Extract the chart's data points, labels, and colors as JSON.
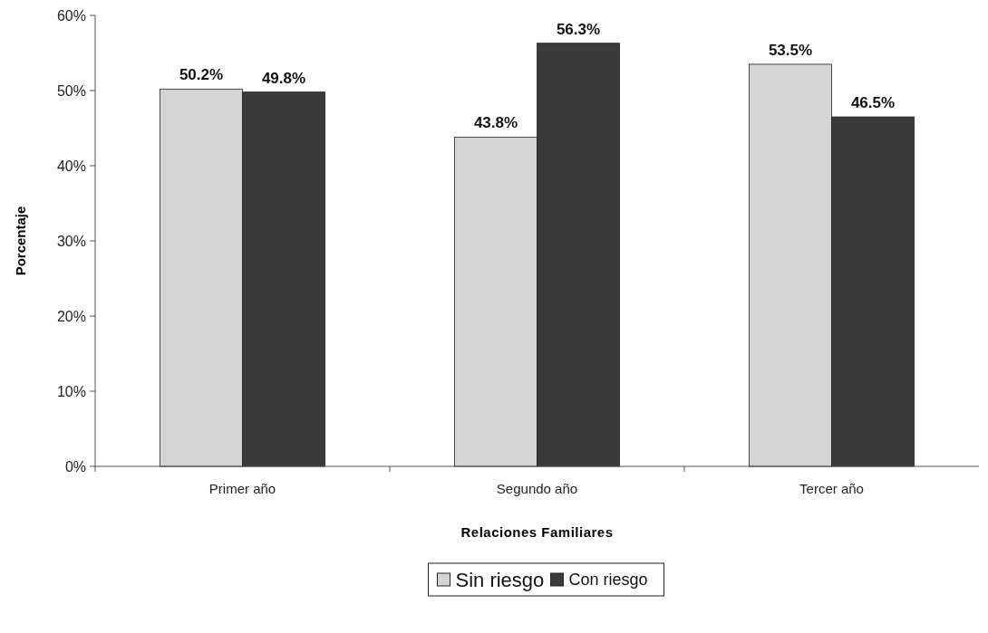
{
  "chart_data": {
    "type": "bar",
    "xlabel": "Relaciones Familiares",
    "ylabel": "Porcentaje",
    "categories": [
      "Primer año",
      "Segundo año",
      "Tercer año"
    ],
    "series": [
      {
        "name": "Sin riesgo",
        "color": "#d4d4d4",
        "values": [
          50.2,
          43.8,
          53.5
        ],
        "value_labels": [
          "50.2%",
          "43.8%",
          "53.5%"
        ]
      },
      {
        "name": "Con riesgo",
        "color": "#3a3a3a",
        "values": [
          49.8,
          56.3,
          46.5
        ],
        "value_labels": [
          "49.8%",
          "56.3%",
          "46.5%"
        ]
      }
    ],
    "ylim": [
      0,
      60
    ],
    "yticks": [
      {
        "value": 0,
        "label": "0%"
      },
      {
        "value": 10,
        "label": "10%"
      },
      {
        "value": 20,
        "label": "20%"
      },
      {
        "value": 30,
        "label": "30%"
      },
      {
        "value": 40,
        "label": "40%"
      },
      {
        "value": 50,
        "label": "50%"
      },
      {
        "value": 60,
        "label": "60%"
      }
    ],
    "grid": false,
    "legend": "bottom"
  }
}
